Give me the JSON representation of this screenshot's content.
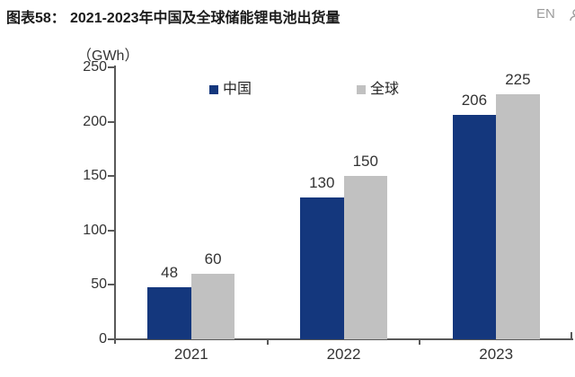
{
  "header": {
    "figure_label": "图表58：",
    "title": "2021-2023年中国及全球储能锂电池出货量",
    "lang_toggle": "EN"
  },
  "chart_data": {
    "type": "bar",
    "title": "2021-2023年中国及全球储能锂电池出货量",
    "unit_label": "（GWh）",
    "categories": [
      "2021",
      "2022",
      "2023"
    ],
    "series": [
      {
        "name": "中国",
        "color": "#14377D",
        "values": [
          48,
          130,
          206
        ]
      },
      {
        "name": "全球",
        "color": "#C1C1C1",
        "values": [
          60,
          150,
          225
        ]
      }
    ],
    "ylim": [
      0,
      250
    ],
    "ytick_step": 50,
    "yticks": [
      0,
      50,
      100,
      150,
      200,
      250
    ],
    "grid": false,
    "legend_position": "top-inside"
  },
  "colors": {
    "axis": "#595959",
    "label_text": "#333333",
    "lang_text": "#9b9b9b"
  }
}
